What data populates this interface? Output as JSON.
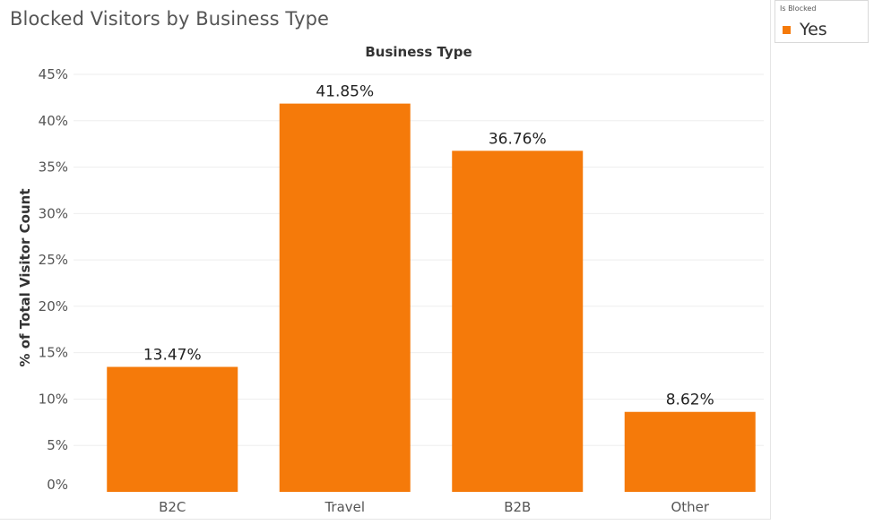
{
  "chart_data": {
    "type": "bar",
    "title": "Blocked Visitors by Business Type",
    "xlabel": "Business Type",
    "ylabel": "% of Total Visitor Count",
    "categories": [
      "B2C",
      "Travel",
      "B2B",
      "Other"
    ],
    "series": [
      {
        "name": "Yes",
        "values": [
          13.47,
          41.85,
          36.76,
          8.62
        ]
      }
    ],
    "data_labels": [
      "13.47%",
      "41.85%",
      "36.76%",
      "8.62%"
    ],
    "ylim": [
      0,
      45
    ],
    "yticks": [
      0,
      5,
      10,
      15,
      20,
      25,
      30,
      35,
      40,
      45
    ],
    "ytick_labels": [
      "0%",
      "5%",
      "10%",
      "15%",
      "20%",
      "25%",
      "30%",
      "35%",
      "40%",
      "45%"
    ],
    "grid": true,
    "legend": {
      "title": "Is Blocked",
      "placement": "top-right"
    },
    "colors": {
      "bar": "#f57a0a",
      "grid": "#eeeeee",
      "text": "#555555"
    }
  }
}
